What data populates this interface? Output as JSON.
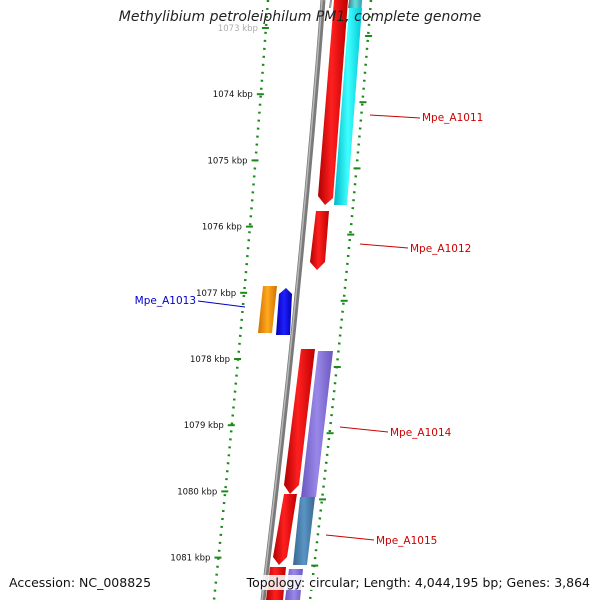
{
  "title": "Methylibium petroleiphilum PM1, complete genome",
  "accession": "Accession: NC_008825",
  "topology": "Topology: circular; Length: 4,044,195 bp; Genes: 3,864",
  "colors": {
    "backbone": "#808080",
    "tick": "#1a8a1a",
    "forward_gene": "#ff0000",
    "reverse_gene_label": "#0000cc",
    "forward_gene_label": "#cc0000",
    "cds_cyan": "#00e5f0",
    "cds_purple": "#8470d8",
    "cds_steelblue": "#4a80b0",
    "cds_orange": "#ff9900",
    "cds_blue": "#0000ff"
  },
  "scale": {
    "tick_labels": [
      "1073 kbp",
      "1074 kbp",
      "1075 kbp",
      "1076 kbp",
      "1077 kbp",
      "1078 kbp",
      "1079 kbp",
      "1080 kbp",
      "1081 kbp"
    ]
  },
  "genes": [
    {
      "label": "Mpe_A1011",
      "strand": "forward",
      "color_key": "forward_gene_label"
    },
    {
      "label": "Mpe_A1012",
      "strand": "forward",
      "color_key": "forward_gene_label"
    },
    {
      "label": "Mpe_A1013",
      "strand": "reverse",
      "color_key": "reverse_gene_label"
    },
    {
      "label": "Mpe_A1014",
      "strand": "forward",
      "color_key": "forward_gene_label"
    },
    {
      "label": "Mpe_A1015",
      "strand": "forward",
      "color_key": "forward_gene_label"
    }
  ]
}
